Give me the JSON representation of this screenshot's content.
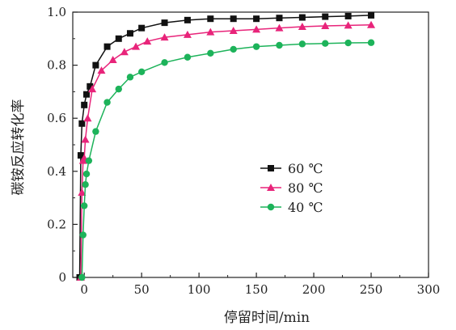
{
  "chart_data": {
    "type": "line",
    "xlabel": "停留时间/min",
    "ylabel": "碳铵反应转化率",
    "xlim": [
      -10,
      300
    ],
    "ylim": [
      0,
      1.0
    ],
    "x_ticks": [
      0,
      50,
      100,
      150,
      200,
      250,
      300
    ],
    "x_tick_labels": [
      "0",
      "50",
      "100",
      "150",
      "200",
      "250",
      "300"
    ],
    "y_ticks": [
      0,
      0.2,
      0.4,
      0.6,
      0.8,
      1.0
    ],
    "y_tick_labels": [
      "0",
      "0.2",
      "0.4",
      "0.6",
      "0.8",
      "1.0"
    ],
    "legend_position": "center-right",
    "series": [
      {
        "name": "60 ℃",
        "color": "#111111",
        "marker": "square",
        "x": [
          -4,
          -3,
          -2,
          0,
          2,
          5,
          10,
          20,
          30,
          40,
          50,
          70,
          90,
          110,
          130,
          150,
          170,
          190,
          210,
          230,
          250
        ],
        "y": [
          0.0,
          0.46,
          0.58,
          0.65,
          0.69,
          0.72,
          0.8,
          0.87,
          0.9,
          0.92,
          0.94,
          0.96,
          0.97,
          0.975,
          0.975,
          0.975,
          0.978,
          0.98,
          0.983,
          0.985,
          0.988
        ]
      },
      {
        "name": "80 ℃",
        "color": "#e8247a",
        "marker": "triangle",
        "x": [
          -3,
          -2,
          -1,
          0,
          1,
          3,
          7,
          15,
          25,
          35,
          45,
          55,
          70,
          90,
          110,
          130,
          150,
          170,
          190,
          210,
          230,
          250
        ],
        "y": [
          0.0,
          0.32,
          0.44,
          0.45,
          0.52,
          0.6,
          0.71,
          0.78,
          0.82,
          0.85,
          0.87,
          0.89,
          0.905,
          0.915,
          0.925,
          0.93,
          0.935,
          0.94,
          0.945,
          0.948,
          0.95,
          0.952
        ]
      },
      {
        "name": "40 ℃",
        "color": "#1db35a",
        "marker": "circle",
        "x": [
          -2,
          -1,
          0,
          1,
          2,
          4,
          10,
          20,
          30,
          40,
          50,
          70,
          90,
          110,
          130,
          150,
          170,
          190,
          210,
          230,
          250
        ],
        "y": [
          0.0,
          0.16,
          0.27,
          0.35,
          0.39,
          0.44,
          0.55,
          0.66,
          0.71,
          0.755,
          0.775,
          0.81,
          0.83,
          0.845,
          0.86,
          0.87,
          0.875,
          0.88,
          0.882,
          0.884,
          0.885
        ]
      }
    ]
  }
}
